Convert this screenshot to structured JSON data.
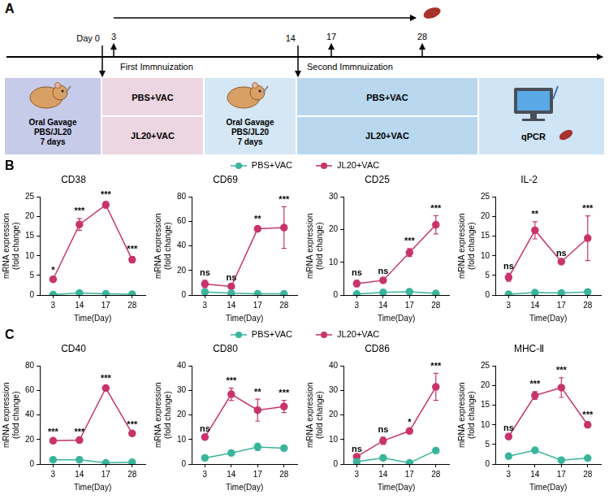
{
  "figure": {
    "panel_labels": [
      "A",
      "B",
      "C"
    ]
  },
  "diagram": {
    "timepoints": [
      "Day 0",
      "3",
      "14",
      "17",
      "28"
    ],
    "phases": [
      "First Immnuization",
      "Second Immnuization"
    ],
    "boxes": [
      {
        "lines": [
          "Oral Gavage",
          "PBS/JL20",
          "7 days"
        ]
      },
      {
        "groups": [
          "PBS+VAC",
          "JL20+VAC"
        ]
      },
      {
        "lines": [
          "Oral Gavage",
          "PBS/JL20",
          "7 days"
        ]
      },
      {
        "groups": [
          "PBS+VAC",
          "JL20+VAC"
        ]
      },
      {
        "lines": [
          "qPCR"
        ]
      }
    ]
  },
  "chart_data": [
    {
      "type": "line",
      "title": "CD38",
      "x_label": "Time(Day)",
      "y_label": "mRNA expression (fold change)",
      "categories": [
        "3",
        "14",
        "17",
        "28"
      ],
      "ylim": [
        0,
        25
      ],
      "yticks": [
        0,
        5,
        10,
        15,
        20,
        25
      ],
      "grid": false,
      "marker": "circle",
      "legend": "top",
      "annotations": [
        "*",
        "***",
        "***",
        "***"
      ],
      "series": [
        {
          "name": "PBS+VAC",
          "color": "#3ab59c",
          "values": [
            0.1,
            0.5,
            0.3,
            0.2
          ],
          "errors": [
            0.2,
            0.3,
            0.2,
            0.2
          ]
        },
        {
          "name": "JL20+VAC",
          "color": "#c8346b",
          "values": [
            4,
            18,
            23,
            9
          ],
          "errors": [
            0.5,
            1.5,
            0.8,
            0.8
          ]
        }
      ]
    },
    {
      "type": "line",
      "title": "CD69",
      "x_label": "Time(Day)",
      "y_label": "mRNA expression (fold change)",
      "categories": [
        "3",
        "14",
        "17",
        "28"
      ],
      "ylim": [
        0,
        80
      ],
      "yticks": [
        0,
        20,
        40,
        60,
        80
      ],
      "grid": false,
      "marker": "circle",
      "annotations": [
        "ns",
        "ns",
        "**",
        "***"
      ],
      "series": [
        {
          "name": "PBS+VAC",
          "color": "#3ab59c",
          "values": [
            2.5,
            1.5,
            1,
            1
          ],
          "errors": [
            0.5,
            0.4,
            0.3,
            0.3
          ]
        },
        {
          "name": "JL20+VAC",
          "color": "#c8346b",
          "values": [
            9,
            7,
            54,
            55
          ],
          "errors": [
            3,
            1,
            2,
            17
          ]
        }
      ]
    },
    {
      "type": "line",
      "title": "CD25",
      "x_label": "Time(Day)",
      "y_label": "mRNA expression (fold change)",
      "categories": [
        "3",
        "14",
        "17",
        "28"
      ],
      "ylim": [
        0,
        30
      ],
      "yticks": [
        0,
        10,
        20,
        30
      ],
      "grid": false,
      "marker": "circle",
      "annotations": [
        "ns",
        "ns",
        "***",
        "***"
      ],
      "series": [
        {
          "name": "PBS+VAC",
          "color": "#3ab59c",
          "values": [
            0.3,
            0.8,
            1,
            0.5
          ],
          "errors": [
            0.2,
            0.2,
            0.2,
            0.2
          ]
        },
        {
          "name": "JL20+VAC",
          "color": "#c8346b",
          "values": [
            3.5,
            4.5,
            13,
            21.5
          ],
          "errors": [
            1,
            0.5,
            1.2,
            2.8
          ]
        }
      ]
    },
    {
      "type": "line",
      "title": "IL-2",
      "x_label": "Time(Day)",
      "y_label": "mRNA expression (fold change)",
      "categories": [
        "3",
        "14",
        "17",
        "28"
      ],
      "ylim": [
        0,
        25
      ],
      "yticks": [
        0,
        5,
        10,
        15,
        20,
        25
      ],
      "grid": false,
      "marker": "circle",
      "annotations": [
        "ns",
        "**",
        "ns",
        "***"
      ],
      "series": [
        {
          "name": "PBS+VAC",
          "color": "#3ab59c",
          "values": [
            0.2,
            0.6,
            0.5,
            0.8
          ],
          "errors": [
            0.1,
            0.2,
            0.2,
            0.2
          ]
        },
        {
          "name": "JL20+VAC",
          "color": "#c8346b",
          "values": [
            4.5,
            16.5,
            8.5,
            14.5
          ],
          "errors": [
            1,
            2.2,
            0.3,
            5.7
          ]
        }
      ]
    },
    {
      "type": "line",
      "title": "CD40",
      "x_label": "Time(Day)",
      "y_label": "mRNA expression (fold change)",
      "categories": [
        "3",
        "14",
        "17",
        "28"
      ],
      "ylim": [
        0,
        80
      ],
      "yticks": [
        0,
        20,
        40,
        60,
        80
      ],
      "grid": false,
      "marker": "circle",
      "legend": "top",
      "annotations": [
        "***",
        "***",
        "***",
        "***"
      ],
      "series": [
        {
          "name": "PBS+VAC",
          "color": "#3ab59c",
          "values": [
            3.5,
            3.5,
            1,
            1.5
          ],
          "errors": [
            0.5,
            0.5,
            0.3,
            0.3
          ]
        },
        {
          "name": "JL20+VAC",
          "color": "#c8346b",
          "values": [
            19,
            19.5,
            62,
            25
          ],
          "errors": [
            1,
            1,
            2,
            1
          ]
        }
      ]
    },
    {
      "type": "line",
      "title": "CD80",
      "x_label": "Time(Day)",
      "y_label": "mRNA expression (fold change)",
      "categories": [
        "3",
        "14",
        "17",
        "28"
      ],
      "ylim": [
        0,
        40
      ],
      "yticks": [
        0,
        10,
        20,
        30,
        40
      ],
      "grid": false,
      "marker": "circle",
      "annotations": [
        "ns",
        "***",
        "**",
        "***"
      ],
      "series": [
        {
          "name": "PBS+VAC",
          "color": "#3ab59c",
          "values": [
            2.5,
            4.5,
            7,
            6.5
          ],
          "errors": [
            0.3,
            0.5,
            1.5,
            0.5
          ]
        },
        {
          "name": "JL20+VAC",
          "color": "#c8346b",
          "values": [
            11,
            28.5,
            22,
            23.5
          ],
          "errors": [
            0.5,
            2.5,
            4.5,
            2.5
          ]
        }
      ]
    },
    {
      "type": "line",
      "title": "CD86",
      "x_label": "Time(Day)",
      "y_label": "mRNA expression (fold change)",
      "categories": [
        "3",
        "14",
        "17",
        "28"
      ],
      "ylim": [
        0,
        40
      ],
      "yticks": [
        0,
        10,
        20,
        30,
        40
      ],
      "grid": false,
      "marker": "circle",
      "annotations": [
        "ns",
        "ns",
        "*",
        "***"
      ],
      "series": [
        {
          "name": "PBS+VAC",
          "color": "#3ab59c",
          "values": [
            1,
            2.5,
            0.5,
            5.5
          ],
          "errors": [
            0.2,
            0.3,
            0.2,
            0.3
          ]
        },
        {
          "name": "JL20+VAC",
          "color": "#c8346b",
          "values": [
            3,
            9.5,
            13.5,
            31.5
          ],
          "errors": [
            0.3,
            1.5,
            0.5,
            5.5
          ]
        }
      ]
    },
    {
      "type": "line",
      "title": "MHC-Ⅱ",
      "x_label": "Time(Day)",
      "y_label": "mRNA expression (fold change)",
      "categories": [
        "3",
        "14",
        "17",
        "28"
      ],
      "ylim": [
        0,
        25
      ],
      "yticks": [
        0,
        5,
        10,
        15,
        20,
        25
      ],
      "grid": false,
      "marker": "circle",
      "annotations": [
        "ns",
        "***",
        "***",
        "***"
      ],
      "series": [
        {
          "name": "PBS+VAC",
          "color": "#3ab59c",
          "values": [
            2,
            3.5,
            1,
            1.5
          ],
          "errors": [
            0.2,
            0.3,
            0.2,
            0.2
          ]
        },
        {
          "name": "JL20+VAC",
          "color": "#c8346b",
          "values": [
            7,
            17.5,
            19.5,
            10
          ],
          "errors": [
            0.3,
            1,
            2.5,
            0.7
          ]
        }
      ]
    }
  ]
}
